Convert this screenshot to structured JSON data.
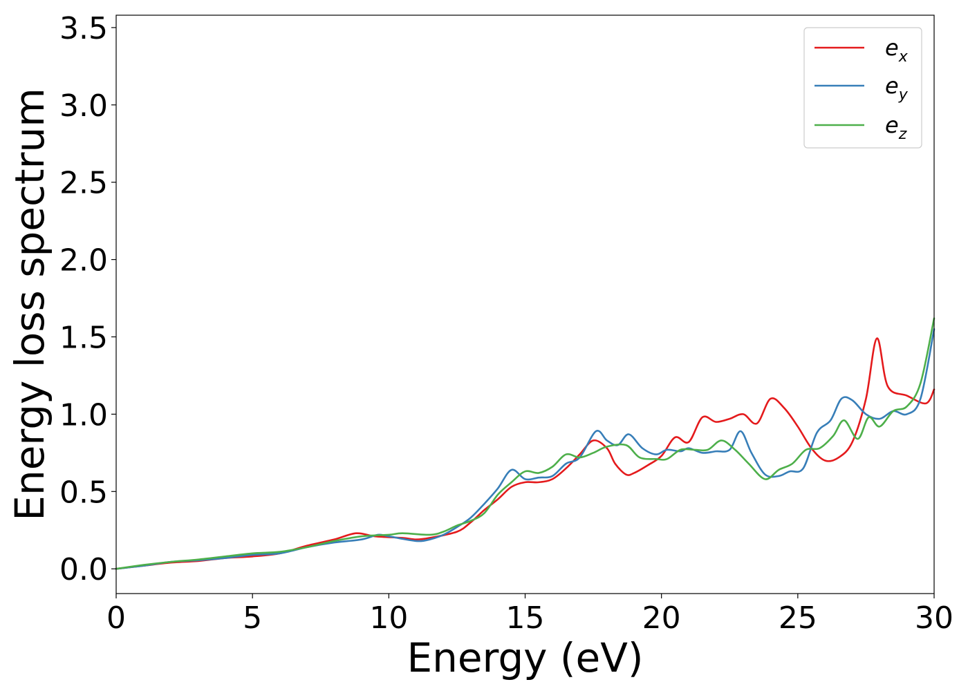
{
  "chart_data": {
    "type": "line",
    "title": "",
    "xlabel": "Energy (eV)",
    "ylabel": "Energy loss spectrum",
    "xlim": [
      0,
      30
    ],
    "ylim": [
      -0.16,
      3.58
    ],
    "xticks": [
      "0",
      "5",
      "10",
      "15",
      "20",
      "25",
      "30"
    ],
    "xtick_values": [
      0,
      5,
      10,
      15,
      20,
      25,
      30
    ],
    "yticks": [
      "0.0",
      "0.5",
      "1.0",
      "1.5",
      "2.0",
      "2.5",
      "3.0",
      "3.5"
    ],
    "ytick_values": [
      0.0,
      0.5,
      1.0,
      1.5,
      2.0,
      2.5,
      3.0,
      3.5
    ],
    "grid": false,
    "legend_position": "top-right",
    "series": [
      {
        "name": "e",
        "subscript": "x",
        "color": "#e41a1c",
        "points": [
          [
            0,
            0
          ],
          [
            1,
            0.02
          ],
          [
            2,
            0.04
          ],
          [
            3,
            0.05
          ],
          [
            4,
            0.07
          ],
          [
            5,
            0.08
          ],
          [
            6,
            0.1
          ],
          [
            7,
            0.15
          ],
          [
            8,
            0.19
          ],
          [
            8.8,
            0.23
          ],
          [
            9.5,
            0.21
          ],
          [
            10.5,
            0.2
          ],
          [
            11,
            0.19
          ],
          [
            11.5,
            0.2
          ],
          [
            12.5,
            0.24
          ],
          [
            13,
            0.3
          ],
          [
            13.5,
            0.38
          ],
          [
            14,
            0.45
          ],
          [
            14.5,
            0.53
          ],
          [
            15,
            0.56
          ],
          [
            15.5,
            0.56
          ],
          [
            16,
            0.58
          ],
          [
            16.5,
            0.65
          ],
          [
            17,
            0.74
          ],
          [
            17.5,
            0.83
          ],
          [
            18,
            0.78
          ],
          [
            18.3,
            0.68
          ],
          [
            18.7,
            0.61
          ],
          [
            19,
            0.62
          ],
          [
            19.5,
            0.67
          ],
          [
            20,
            0.73
          ],
          [
            20.5,
            0.85
          ],
          [
            21,
            0.82
          ],
          [
            21.5,
            0.98
          ],
          [
            22,
            0.95
          ],
          [
            22.5,
            0.97
          ],
          [
            23,
            1.0
          ],
          [
            23.5,
            0.94
          ],
          [
            24,
            1.1
          ],
          [
            24.5,
            1.04
          ],
          [
            25,
            0.92
          ],
          [
            25.5,
            0.78
          ],
          [
            26,
            0.7
          ],
          [
            26.5,
            0.72
          ],
          [
            27,
            0.82
          ],
          [
            27.5,
            1.1
          ],
          [
            27.9,
            1.49
          ],
          [
            28.3,
            1.18
          ],
          [
            29,
            1.12
          ],
          [
            29.7,
            1.07
          ],
          [
            30,
            1.16
          ]
        ]
      },
      {
        "name": "e",
        "subscript": "y",
        "color": "#377eb8",
        "points": [
          [
            0,
            0
          ],
          [
            1,
            0.02
          ],
          [
            2,
            0.045
          ],
          [
            3,
            0.055
          ],
          [
            4,
            0.07
          ],
          [
            5,
            0.09
          ],
          [
            6,
            0.1
          ],
          [
            7,
            0.14
          ],
          [
            8,
            0.17
          ],
          [
            9,
            0.19
          ],
          [
            9.6,
            0.22
          ],
          [
            10,
            0.21
          ],
          [
            11,
            0.18
          ],
          [
            11.5,
            0.19
          ],
          [
            12,
            0.22
          ],
          [
            12.5,
            0.27
          ],
          [
            13,
            0.33
          ],
          [
            13.5,
            0.42
          ],
          [
            14,
            0.52
          ],
          [
            14.5,
            0.64
          ],
          [
            15,
            0.58
          ],
          [
            15.5,
            0.59
          ],
          [
            16,
            0.6
          ],
          [
            16.5,
            0.68
          ],
          [
            17,
            0.72
          ],
          [
            17.6,
            0.89
          ],
          [
            18,
            0.83
          ],
          [
            18.4,
            0.8
          ],
          [
            18.8,
            0.87
          ],
          [
            19.3,
            0.78
          ],
          [
            19.8,
            0.74
          ],
          [
            20.2,
            0.77
          ],
          [
            20.7,
            0.76
          ],
          [
            21,
            0.78
          ],
          [
            21.5,
            0.75
          ],
          [
            22,
            0.76
          ],
          [
            22.5,
            0.77
          ],
          [
            22.9,
            0.89
          ],
          [
            23.3,
            0.75
          ],
          [
            23.8,
            0.61
          ],
          [
            24.3,
            0.6
          ],
          [
            24.7,
            0.63
          ],
          [
            25.2,
            0.65
          ],
          [
            25.7,
            0.88
          ],
          [
            26.2,
            0.96
          ],
          [
            26.6,
            1.1
          ],
          [
            27,
            1.09
          ],
          [
            27.5,
            1.0
          ],
          [
            28,
            0.97
          ],
          [
            28.5,
            1.02
          ],
          [
            29,
            1.0
          ],
          [
            29.5,
            1.1
          ],
          [
            30,
            1.55
          ]
        ]
      },
      {
        "name": "e",
        "subscript": "z",
        "color": "#4daf4a",
        "points": [
          [
            0,
            0
          ],
          [
            1,
            0.025
          ],
          [
            2,
            0.045
          ],
          [
            3,
            0.06
          ],
          [
            4,
            0.08
          ],
          [
            5,
            0.1
          ],
          [
            6,
            0.11
          ],
          [
            7,
            0.14
          ],
          [
            8,
            0.18
          ],
          [
            9,
            0.21
          ],
          [
            10,
            0.22
          ],
          [
            10.5,
            0.23
          ],
          [
            11.5,
            0.22
          ],
          [
            12,
            0.24
          ],
          [
            12.5,
            0.28
          ],
          [
            13,
            0.31
          ],
          [
            13.5,
            0.36
          ],
          [
            14,
            0.48
          ],
          [
            14.5,
            0.56
          ],
          [
            15,
            0.63
          ],
          [
            15.5,
            0.62
          ],
          [
            16,
            0.66
          ],
          [
            16.5,
            0.74
          ],
          [
            17,
            0.72
          ],
          [
            17.5,
            0.75
          ],
          [
            18,
            0.79
          ],
          [
            18.7,
            0.8
          ],
          [
            19.2,
            0.72
          ],
          [
            19.8,
            0.71
          ],
          [
            20.2,
            0.71
          ],
          [
            20.7,
            0.77
          ],
          [
            21.2,
            0.77
          ],
          [
            21.7,
            0.77
          ],
          [
            22.2,
            0.83
          ],
          [
            22.7,
            0.77
          ],
          [
            23.2,
            0.68
          ],
          [
            23.8,
            0.58
          ],
          [
            24.3,
            0.64
          ],
          [
            24.8,
            0.68
          ],
          [
            25.3,
            0.77
          ],
          [
            25.8,
            0.78
          ],
          [
            26.3,
            0.86
          ],
          [
            26.7,
            0.96
          ],
          [
            27.2,
            0.84
          ],
          [
            27.6,
            0.98
          ],
          [
            28,
            0.92
          ],
          [
            28.5,
            1.02
          ],
          [
            29,
            1.05
          ],
          [
            29.5,
            1.2
          ],
          [
            30,
            1.62
          ]
        ]
      }
    ]
  }
}
